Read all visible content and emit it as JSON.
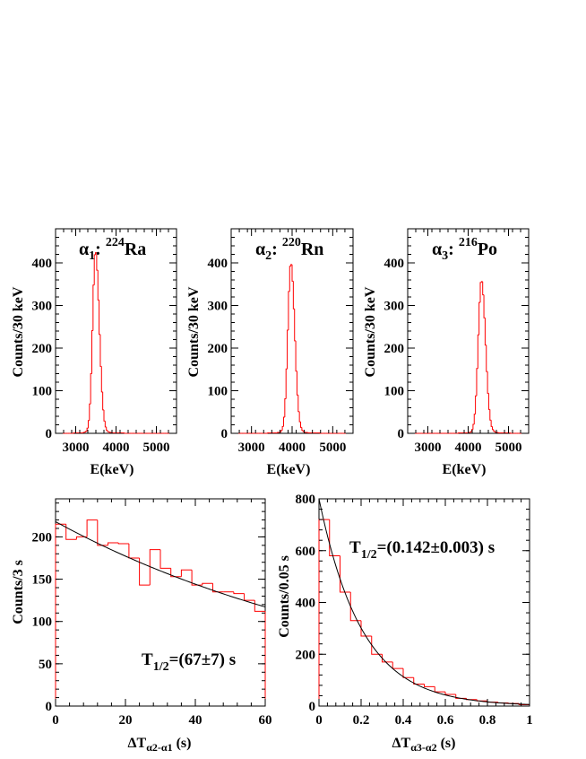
{
  "chart_data": [
    {
      "type": "histogram",
      "panel": "alpha1",
      "title": {
        "greek": "α",
        "sub": "1",
        "sep": ": ",
        "sup": "224",
        "name": "Ra"
      },
      "xlabel": "E(keV)",
      "ylabel": "Counts/30 keV",
      "xlim": [
        2500,
        5500
      ],
      "ylim": [
        0,
        480
      ],
      "xticks": [
        3000,
        4000,
        5000
      ],
      "yticks": [
        0,
        100,
        200,
        300,
        400
      ],
      "bin_width": 30,
      "peak": {
        "center": 3490,
        "height": 405,
        "sigma_left": 70,
        "sigma_right": 95
      },
      "color": "#ff0000"
    },
    {
      "type": "histogram",
      "panel": "alpha2",
      "title": {
        "greek": "α",
        "sub": "2",
        "sep": ": ",
        "sup": "220",
        "name": "Rn"
      },
      "xlabel": "E(keV)",
      "ylabel": "Counts/30 keV",
      "xlim": [
        2500,
        5500
      ],
      "ylim": [
        0,
        480
      ],
      "xticks": [
        3000,
        4000,
        5000
      ],
      "yticks": [
        0,
        100,
        200,
        300,
        400
      ],
      "bin_width": 30,
      "peak": {
        "center": 3970,
        "height": 378,
        "sigma_left": 75,
        "sigma_right": 95
      },
      "color": "#ff0000"
    },
    {
      "type": "histogram",
      "panel": "alpha3",
      "title": {
        "greek": "α",
        "sub": "3",
        "sep": ": ",
        "sup": "216",
        "name": "Po"
      },
      "xlabel": "E(keV)",
      "ylabel": "Counts/30 keV",
      "xlim": [
        2500,
        5500
      ],
      "ylim": [
        0,
        480
      ],
      "xticks": [
        3000,
        4000,
        5000
      ],
      "yticks": [
        0,
        100,
        200,
        300,
        400
      ],
      "bin_width": 30,
      "peak": {
        "center": 4330,
        "height": 340,
        "sigma_left": 80,
        "sigma_right": 100
      },
      "color": "#ff0000"
    },
    {
      "type": "histogram",
      "panel": "dt21",
      "xlabel": {
        "main": "ΔT",
        "sub": "α2-α1",
        "suffix": " (s)"
      },
      "ylabel": "Counts/3 s",
      "xlim": [
        0,
        60
      ],
      "ylim": [
        0,
        245
      ],
      "xticks": [
        0,
        20,
        40,
        60
      ],
      "yticks": [
        0,
        50,
        100,
        150,
        200
      ],
      "bin_edges": [
        0,
        3,
        6,
        9,
        12,
        15,
        18,
        21,
        24,
        27,
        30,
        33,
        36,
        39,
        42,
        45,
        48,
        51,
        54,
        57,
        60
      ],
      "counts": [
        215,
        197,
        200,
        220,
        190,
        193,
        192,
        175,
        143,
        185,
        163,
        153,
        161,
        143,
        145,
        135,
        135,
        133,
        125,
        112
      ],
      "fit": {
        "type": "exponential",
        "A": 218,
        "half_life": 67
      },
      "annotation": {
        "main": "T",
        "sub": "1/2",
        "text": "=(67±7) s"
      },
      "color": "#ff0000"
    },
    {
      "type": "histogram",
      "panel": "dt32",
      "xlabel": {
        "main": "ΔT",
        "sub": "α3-α2",
        "suffix": " (s)"
      },
      "ylabel": "Counts/0.05 s",
      "xlim": [
        0,
        1
      ],
      "ylim": [
        0,
        800
      ],
      "xticks": [
        0,
        0.2,
        0.4,
        0.6,
        0.8,
        1
      ],
      "yticks": [
        0,
        200,
        400,
        600,
        800
      ],
      "bin_edges": [
        0,
        0.05,
        0.1,
        0.15,
        0.2,
        0.25,
        0.3,
        0.35,
        0.4,
        0.45,
        0.5,
        0.55,
        0.6,
        0.65,
        0.7,
        0.75,
        0.8,
        0.85,
        0.9,
        0.95,
        1.0
      ],
      "counts": [
        720,
        580,
        440,
        330,
        270,
        200,
        170,
        145,
        110,
        85,
        75,
        55,
        45,
        30,
        25,
        20,
        15,
        12,
        10,
        5
      ],
      "fit": {
        "type": "exponential",
        "A": 800,
        "half_life": 0.142
      },
      "annotation": {
        "main": "T",
        "sub": "1/2",
        "text": "=(0.142±0.003) s"
      },
      "color": "#ff0000"
    }
  ]
}
